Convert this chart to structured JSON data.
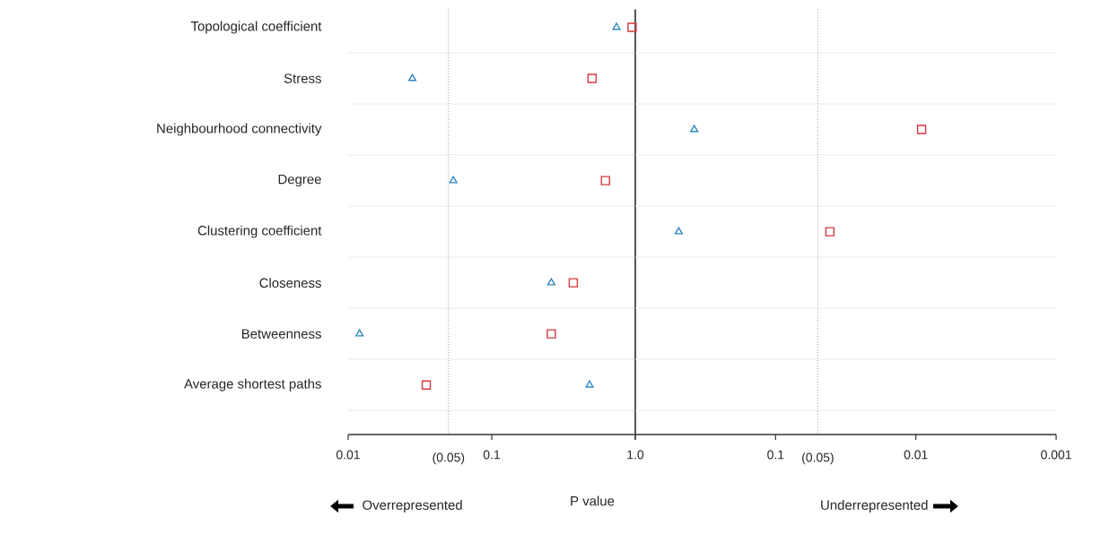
{
  "chart_data": [
    {
      "type": "scatter",
      "orientation": "horizontal",
      "xlabel": "P value",
      "log": "x",
      "categories": [
        "Topological coefficient",
        "Stress",
        "Neighbourhood connectivity",
        "Degree",
        "Clustering coefficient",
        "Closeness",
        "Betweenness",
        "Average shortest paths"
      ],
      "series": [
        {
          "color": "#2f88c2",
          "marker": "triangle",
          "values": [
            0.74,
            0.028,
            null,
            0.054,
            null,
            0.26,
            0.012,
            0.48
          ]
        },
        {
          "color": "#d6383f",
          "marker": "square",
          "values": [
            0.95,
            0.5,
            null,
            0.62,
            null,
            0.37,
            0.26,
            0.035
          ]
        }
      ],
      "xlim": [
        0.01,
        1
      ],
      "xticks": [
        0.01,
        0.1,
        {
          "value": 1,
          "label": "1.0"
        }
      ],
      "ref_lines": [
        {
          "axis": "x",
          "value": 1,
          "color": "#555555",
          "line_style": "solid"
        },
        {
          "axis": "x",
          "value": 0.05,
          "color": "#999999",
          "line_style": "dotted",
          "label": "(0.05)"
        }
      ],
      "annotations": [
        "Overrepresented"
      ],
      "grid": "y"
    },
    {
      "type": "scatter",
      "orientation": "horizontal",
      "log": "x",
      "tick_labels": "x",
      "series": [
        {
          "color": "#2f88c2",
          "marker": "triangle",
          "values": [
            null,
            null,
            0.38,
            null,
            0.49,
            null,
            null,
            null
          ]
        },
        {
          "color": "#d6383f",
          "marker": "square",
          "values": [
            null,
            null,
            0.0091,
            null,
            0.041,
            null,
            null,
            null
          ]
        }
      ],
      "xlim": [
        1,
        0.001
      ],
      "xticks": [
        {
          "value": 1,
          "label": null
        },
        0.1,
        0.01,
        0.001
      ],
      "ref_lines": [
        {
          "axis": "x",
          "value": 0.05,
          "color": "#999999",
          "line_style": "dotted",
          "label": "(0.05)"
        }
      ],
      "annotations": [
        "Underrepresented"
      ],
      "grid": "y"
    }
  ]
}
